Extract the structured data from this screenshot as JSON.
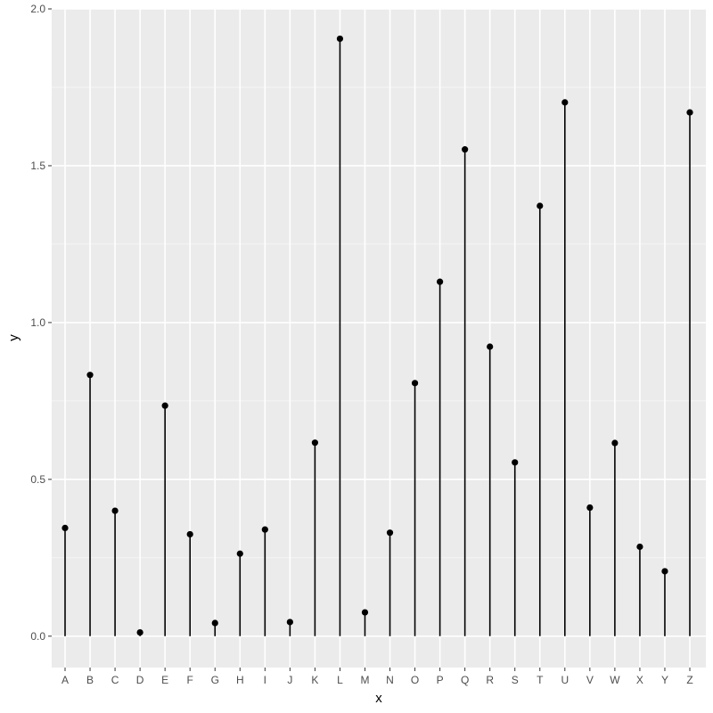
{
  "chart_data": {
    "type": "lollipop",
    "title": "",
    "xlabel": "x",
    "ylabel": "y",
    "categories": [
      "A",
      "B",
      "C",
      "D",
      "E",
      "F",
      "G",
      "H",
      "I",
      "J",
      "K",
      "L",
      "M",
      "N",
      "O",
      "P",
      "Q",
      "R",
      "S",
      "T",
      "U",
      "V",
      "W",
      "X",
      "Y",
      "Z"
    ],
    "values": [
      0.345,
      0.833,
      0.4,
      0.012,
      0.735,
      0.325,
      0.042,
      0.263,
      0.34,
      0.045,
      0.617,
      1.905,
      0.076,
      0.33,
      0.807,
      1.13,
      1.552,
      0.923,
      0.554,
      1.372,
      1.702,
      0.41,
      0.616,
      0.285,
      0.207,
      1.67
    ],
    "ylim": [
      -0.1,
      2.0
    ],
    "yticks": [
      0.0,
      0.5,
      1.0,
      1.5,
      2.0
    ],
    "ytick_labels": [
      "0.0",
      "0.5",
      "1.0",
      "1.5",
      "2.0"
    ],
    "grid": true,
    "colors": {
      "panel_background": "#ebebeb",
      "grid_major": "#ffffff",
      "grid_minor": "#f5f5f5",
      "mark": "#000000"
    }
  }
}
